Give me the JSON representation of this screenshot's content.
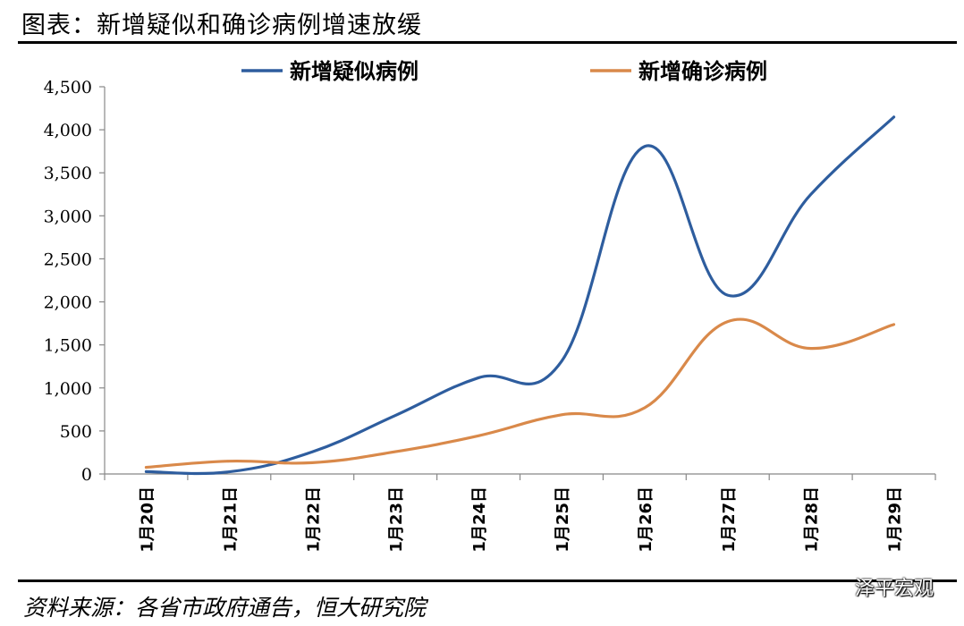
{
  "header": {
    "title": "图表：新增疑似和确诊病例增速放缓"
  },
  "footer": {
    "source": "资料来源：各省市政府通告，恒大研究院",
    "watermark": "泽平宏观"
  },
  "chart_data": {
    "type": "line",
    "title": "",
    "xlabel": "",
    "ylabel": "",
    "ylim": [
      0,
      4500
    ],
    "yticks": [
      0,
      500,
      1000,
      1500,
      2000,
      2500,
      3000,
      3500,
      4000,
      4500
    ],
    "ytick_labels": [
      "0",
      "500",
      "1,000",
      "1,500",
      "2,000",
      "2,500",
      "3,000",
      "3,500",
      "4,000",
      "4,500"
    ],
    "categories": [
      "1月20日",
      "1月21日",
      "1月22日",
      "1月23日",
      "1月24日",
      "1月25日",
      "1月26日",
      "1月27日",
      "1月28日",
      "1月29日"
    ],
    "grid": false,
    "legend": "top",
    "series": [
      {
        "name": "新增疑似病例",
        "color": "#2E5D9E",
        "values": [
          27,
          25,
          257,
          680,
          1118,
          1309,
          3806,
          2077,
          3248,
          4148
        ]
      },
      {
        "name": "新增确诊病例",
        "color": "#D9894A",
        "values": [
          77,
          149,
          131,
          259,
          444,
          688,
          769,
          1771,
          1459,
          1737
        ]
      }
    ]
  }
}
